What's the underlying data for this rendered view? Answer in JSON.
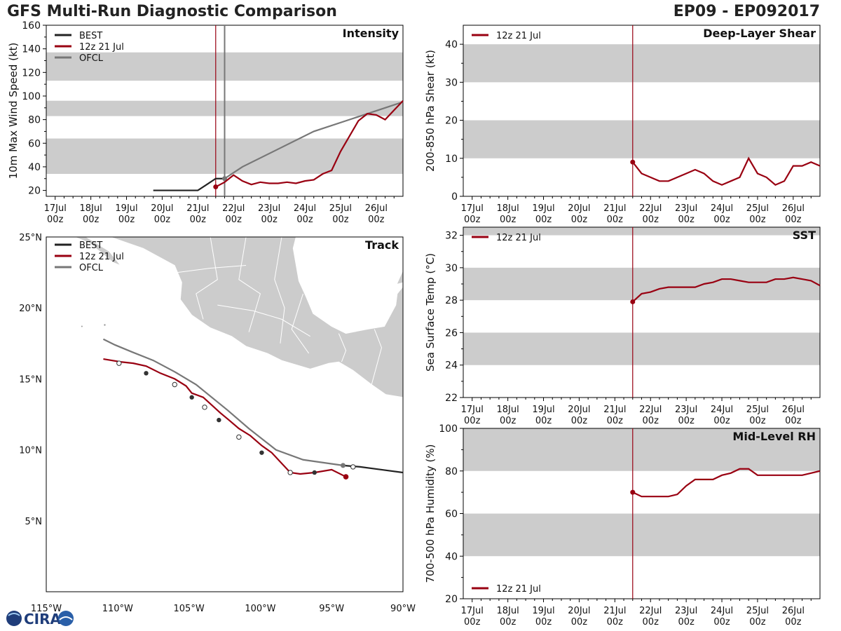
{
  "title_left": "GFS Multi-Run Diagnostic Comparison",
  "title_right": "EP09 - EP092017",
  "logo_text": "CIRA",
  "colors": {
    "best": "#222222",
    "run": "#990011",
    "ofcl": "#777777",
    "band": "#cccccc",
    "land": "#cccccc"
  },
  "legend": {
    "best": "BEST",
    "run": "12z 21 Jul",
    "ofcl": "OFCL"
  },
  "time_ticks": [
    {
      "day": "17Jul",
      "hour": "00z"
    },
    {
      "day": "18Jul",
      "hour": "00z"
    },
    {
      "day": "19Jul",
      "hour": "00z"
    },
    {
      "day": "20Jul",
      "hour": "00z"
    },
    {
      "day": "21Jul",
      "hour": "00z"
    },
    {
      "day": "22Jul",
      "hour": "00z"
    },
    {
      "day": "23Jul",
      "hour": "00z"
    },
    {
      "day": "24Jul",
      "hour": "00z"
    },
    {
      "day": "25Jul",
      "hour": "00z"
    },
    {
      "day": "26Jul",
      "hour": "00z"
    }
  ],
  "chart_data": [
    {
      "id": "intensity",
      "type": "line",
      "title": "Intensity",
      "xlabel": "",
      "ylabel": "10m Max Wind Speed (kt)",
      "x_unit": "days since 17Jul 00z",
      "xlim": [
        -0.25,
        9.75
      ],
      "ylim": [
        15,
        160
      ],
      "yticks": [
        20,
        40,
        60,
        80,
        100,
        120,
        140,
        160
      ],
      "bands": [
        [
          34,
          64
        ],
        [
          83,
          96
        ],
        [
          113,
          137
        ]
      ],
      "vlines": [
        4.5,
        4.75
      ],
      "legend": [
        "BEST",
        "12z 21 Jul",
        "OFCL"
      ],
      "series": [
        {
          "name": "BEST",
          "color": "#222222",
          "x": [
            2.75,
            3.0,
            3.25,
            3.5,
            3.75,
            4.0,
            4.25,
            4.5,
            4.75
          ],
          "y": [
            20,
            20,
            20,
            20,
            20,
            20,
            25,
            30,
            30
          ]
        },
        {
          "name": "OFCL",
          "color": "#777777",
          "x": [
            4.75,
            5.0,
            5.25,
            6.25,
            7.25,
            8.25,
            9.25,
            9.75
          ],
          "y": [
            30,
            35,
            40,
            55,
            70,
            80,
            90,
            95
          ],
          "markers": [
            4.75
          ]
        },
        {
          "name": "12z 21 Jul",
          "color": "#990011",
          "start_marker": true,
          "x": [
            4.5,
            4.75,
            5.0,
            5.25,
            5.5,
            5.75,
            6.0,
            6.25,
            6.5,
            6.75,
            7.0,
            7.25,
            7.5,
            7.75,
            8.0,
            8.25,
            8.5,
            8.75,
            9.0,
            9.25,
            9.5,
            9.75
          ],
          "y": [
            23,
            27,
            33,
            28,
            25,
            27,
            26,
            26,
            27,
            26,
            28,
            29,
            34,
            37,
            53,
            66,
            79,
            85,
            84,
            80,
            88,
            96
          ]
        }
      ]
    },
    {
      "id": "track",
      "type": "map",
      "title": "Track",
      "xlim": [
        -115,
        -90
      ],
      "ylim": [
        0,
        25
      ],
      "xticks": [
        -115,
        -110,
        -105,
        -100,
        -95,
        -90
      ],
      "xtick_labels": [
        "115°W",
        "110°W",
        "105°W",
        "100°W",
        "95°W",
        "90°W"
      ],
      "yticks": [
        5,
        10,
        15,
        20,
        25
      ],
      "ytick_labels": [
        "5°N",
        "10°N",
        "15°N",
        "20°N",
        "25°N"
      ],
      "legend": [
        "BEST",
        "12z 21 Jul",
        "OFCL"
      ],
      "series": [
        {
          "name": "BEST",
          "color": "#222222",
          "lon": [
            -94.2,
            -93.0,
            -91.5,
            -90.0
          ],
          "lat": [
            8.9,
            8.8,
            8.6,
            8.4
          ]
        },
        {
          "name": "OFCL",
          "color": "#777777",
          "lon": [
            -94.2,
            -97.0,
            -98.9,
            -100.8,
            -102.3,
            -104.5,
            -106.0,
            -107.5,
            -109.0,
            -110.2,
            -111.0
          ],
          "lat": [
            8.9,
            9.3,
            10.0,
            11.5,
            12.8,
            14.6,
            15.5,
            16.3,
            16.9,
            17.4,
            17.8
          ]
        },
        {
          "name": "12z 21 Jul",
          "color": "#990011",
          "lon": [
            -94.0,
            -95.0,
            -96.2,
            -97.2,
            -97.9,
            -99.2,
            -99.9,
            -100.7,
            -101.5,
            -102.2,
            -102.8,
            -104.0,
            -104.8,
            -105.2,
            -106.0,
            -107.0,
            -108.0,
            -108.9,
            -109.8,
            -111.0
          ],
          "lat": [
            8.1,
            8.6,
            8.4,
            8.3,
            8.4,
            9.8,
            10.3,
            11.0,
            11.5,
            12.1,
            12.6,
            13.7,
            14.0,
            14.5,
            15.0,
            15.4,
            15.9,
            16.1,
            16.2,
            16.4
          ],
          "filled_markers": [
            [
              -94.0,
              8.1
            ]
          ],
          "dark_markers": [
            [
              -96.2,
              8.4
            ],
            [
              -99.9,
              9.8
            ],
            [
              -102.9,
              12.1
            ],
            [
              -104.8,
              13.7
            ],
            [
              -108.0,
              15.4
            ]
          ],
          "open_markers": [
            [
              -97.9,
              8.4
            ],
            [
              -101.5,
              10.9
            ],
            [
              -103.9,
              13.0
            ],
            [
              -106.0,
              14.6
            ],
            [
              -109.9,
              16.1
            ],
            [
              -93.5,
              8.8
            ]
          ],
          "ofcl_marker": [
            -94.2,
            8.9
          ]
        }
      ]
    },
    {
      "id": "shear",
      "type": "line",
      "title": "Deep-Layer Shear",
      "ylabel": "200-850 hPa Shear (kt)",
      "xlim": [
        -0.25,
        9.75
      ],
      "ylim": [
        0,
        45
      ],
      "yticks": [
        0,
        10,
        20,
        30,
        40
      ],
      "bands": [
        [
          10,
          20
        ],
        [
          30,
          40
        ]
      ],
      "vlines": [
        4.5
      ],
      "legend": [
        "12z 21 Jul"
      ],
      "series": [
        {
          "name": "12z 21 Jul",
          "color": "#990011",
          "start_marker": true,
          "x": [
            4.5,
            4.75,
            5.0,
            5.25,
            5.5,
            5.75,
            6.0,
            6.25,
            6.5,
            6.75,
            7.0,
            7.25,
            7.5,
            7.75,
            8.0,
            8.25,
            8.5,
            8.75,
            9.0,
            9.25,
            9.5,
            9.75
          ],
          "y": [
            9,
            6,
            5,
            4,
            4,
            5,
            6,
            7,
            6,
            4,
            3,
            4,
            5,
            10,
            6,
            5,
            3,
            4,
            8,
            8,
            9,
            8
          ]
        }
      ]
    },
    {
      "id": "sst",
      "type": "line",
      "title": "SST",
      "ylabel": "Sea Surface Temp (°C)",
      "xlim": [
        -0.25,
        9.75
      ],
      "ylim": [
        22,
        32.5
      ],
      "yticks": [
        22,
        24,
        26,
        28,
        30,
        32
      ],
      "bands": [
        [
          24,
          26
        ],
        [
          28,
          30
        ],
        [
          32,
          32.5
        ]
      ],
      "vlines": [
        4.5
      ],
      "legend": [
        "12z 21 Jul"
      ],
      "series": [
        {
          "name": "12z 21 Jul",
          "color": "#990011",
          "start_marker": true,
          "x": [
            4.5,
            4.75,
            5.0,
            5.25,
            5.5,
            5.75,
            6.0,
            6.25,
            6.5,
            6.75,
            7.0,
            7.25,
            7.5,
            7.75,
            8.0,
            8.25,
            8.5,
            8.75,
            9.0,
            9.25,
            9.5,
            9.75
          ],
          "y": [
            27.9,
            28.4,
            28.5,
            28.7,
            28.8,
            28.8,
            28.8,
            28.8,
            29.0,
            29.1,
            29.3,
            29.3,
            29.2,
            29.1,
            29.1,
            29.1,
            29.3,
            29.3,
            29.4,
            29.3,
            29.2,
            28.9
          ]
        }
      ]
    },
    {
      "id": "rh",
      "type": "line",
      "title": "Mid-Level RH",
      "ylabel": "700-500 hPa Humidity (%)",
      "xlim": [
        -0.25,
        9.75
      ],
      "ylim": [
        20,
        100
      ],
      "yticks": [
        20,
        40,
        60,
        80,
        100
      ],
      "bands": [
        [
          40,
          60
        ],
        [
          80,
          100
        ]
      ],
      "vlines": [
        4.5
      ],
      "legend": [
        "12z 21 Jul"
      ],
      "series": [
        {
          "name": "12z 21 Jul",
          "color": "#990011",
          "start_marker": true,
          "x": [
            4.5,
            4.75,
            5.0,
            5.25,
            5.5,
            5.75,
            6.0,
            6.25,
            6.5,
            6.75,
            7.0,
            7.25,
            7.5,
            7.75,
            8.0,
            8.25,
            8.5,
            8.75,
            9.0,
            9.25,
            9.5,
            9.75
          ],
          "y": [
            70,
            68,
            68,
            68,
            68,
            69,
            73,
            76,
            76,
            76,
            78,
            79,
            81,
            81,
            78,
            78,
            78,
            78,
            78,
            78,
            79,
            80
          ]
        }
      ]
    }
  ]
}
